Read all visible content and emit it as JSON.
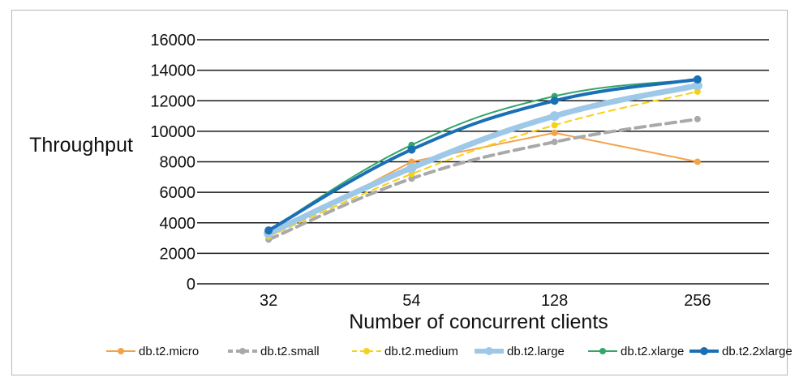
{
  "chart_data": {
    "type": "line",
    "title": "",
    "xlabel": "Number of concurrent clients",
    "ylabel": "Throughput",
    "categories": [
      "32",
      "54",
      "128",
      "256"
    ],
    "yticks": [
      0,
      2000,
      4000,
      6000,
      8000,
      10000,
      12000,
      14000,
      16000
    ],
    "ylim": [
      0,
      16000
    ],
    "grid": "horizontal",
    "legend": "bottom",
    "series": [
      {
        "name": "db.t2.micro",
        "values": [
          3100,
          8000,
          9900,
          8000
        ],
        "color": "#f4a24a",
        "dash": "solid"
      },
      {
        "name": "db.t2.small",
        "values": [
          2900,
          6900,
          9300,
          10800
        ],
        "color": "#a9a9a9",
        "dash": "dashed"
      },
      {
        "name": "db.t2.medium",
        "values": [
          3100,
          7200,
          10400,
          12600
        ],
        "color": "#f7d117",
        "dash": "dashed"
      },
      {
        "name": "db.t2.large",
        "values": [
          3300,
          7600,
          11000,
          13000
        ],
        "color": "#9ec8e8",
        "dash": "solid"
      },
      {
        "name": "db.t2.xlarge",
        "values": [
          3500,
          9100,
          12300,
          13400
        ],
        "color": "#35a56a",
        "dash": "solid"
      },
      {
        "name": "db.t2.2xlarge",
        "values": [
          3500,
          8800,
          12000,
          13400
        ],
        "color": "#1a6fb5",
        "dash": "solid"
      }
    ]
  }
}
